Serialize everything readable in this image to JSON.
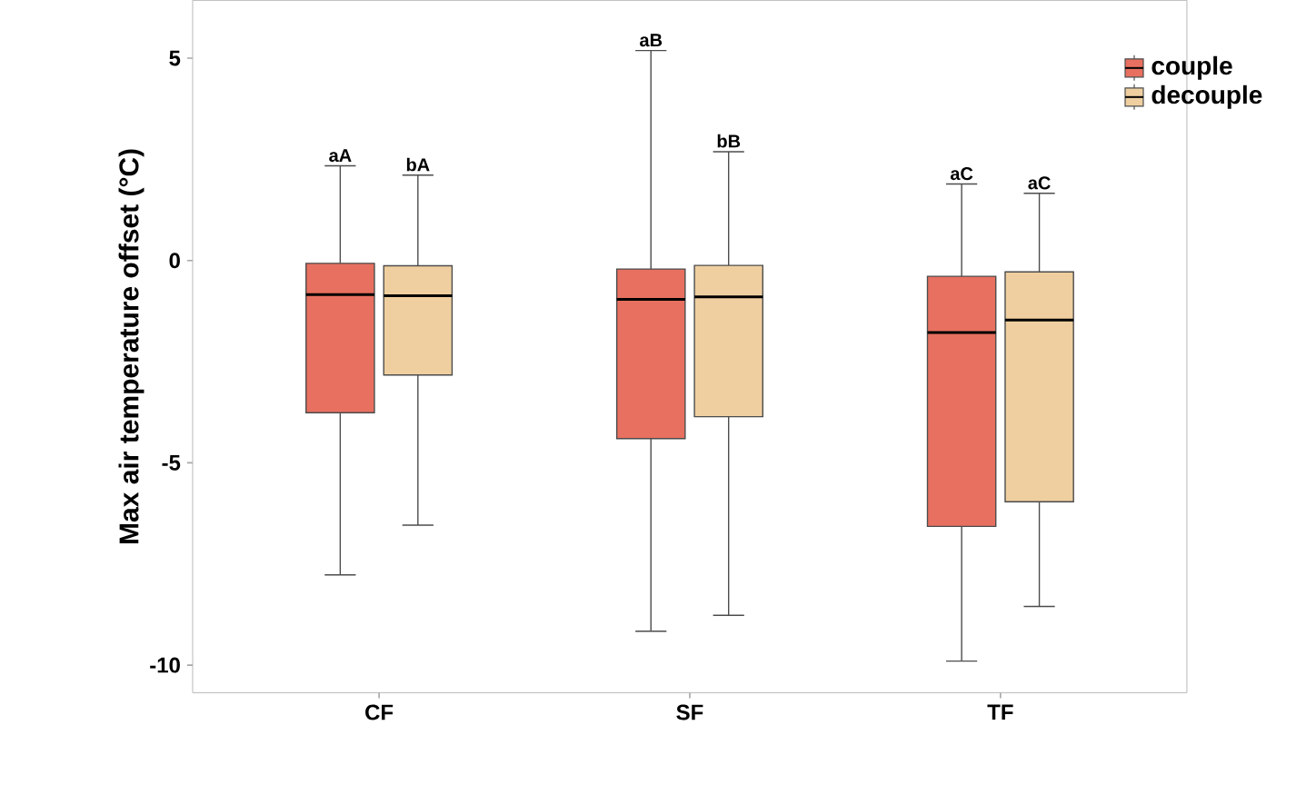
{
  "chart_data": {
    "type": "box",
    "ylabel": "Max air temperature offset (°C)",
    "categories": [
      "CF",
      "SF",
      "TF"
    ],
    "ylim": [
      -10.68,
      6.43
    ],
    "yticks": [
      5,
      0,
      -5,
      -10
    ],
    "legend": "top right",
    "grid": false,
    "series": [
      {
        "name": "couple",
        "color": "#e87060",
        "boxes": [
          {
            "low": -7.77,
            "q1": -3.76,
            "median": -0.84,
            "q3": -0.07,
            "high": 2.34
          },
          {
            "low": -9.16,
            "q1": -4.4,
            "median": -0.96,
            "q3": -0.21,
            "high": 5.19
          },
          {
            "low": -9.9,
            "q1": -6.57,
            "median": -1.78,
            "q3": -0.39,
            "high": 1.89
          }
        ]
      },
      {
        "name": "decouple",
        "color": "#efcfa0",
        "boxes": [
          {
            "low": -6.54,
            "q1": -2.83,
            "median": -0.87,
            "q3": -0.13,
            "high": 2.11
          },
          {
            "low": -8.77,
            "q1": -3.86,
            "median": -0.9,
            "q3": -0.12,
            "high": 2.69
          },
          {
            "low": -8.55,
            "q1": -5.96,
            "median": -1.47,
            "q3": -0.28,
            "high": 1.66
          }
        ]
      }
    ],
    "annotations": [
      "aA",
      "bA",
      "aB",
      "bB",
      "aC",
      "aC"
    ]
  }
}
